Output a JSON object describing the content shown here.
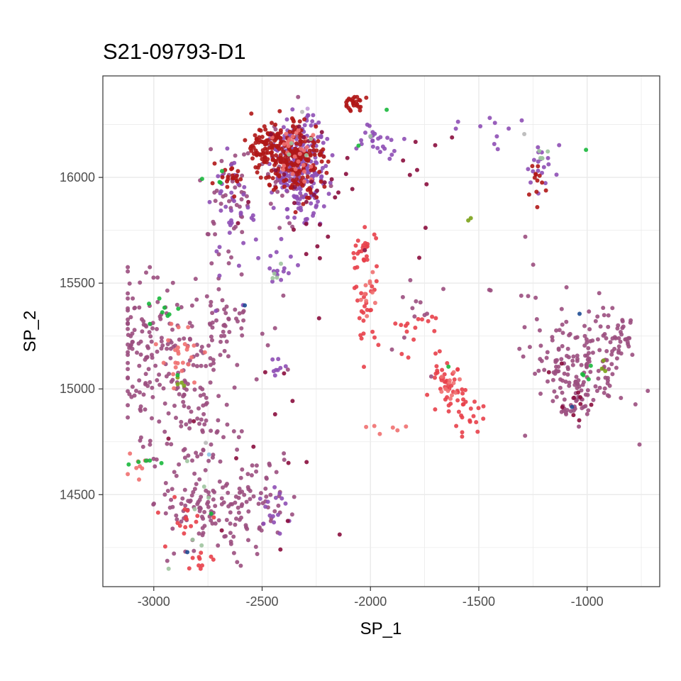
{
  "chart_data": {
    "type": "scatter",
    "title": "S21-09793-D1",
    "xlabel": "SP_1",
    "ylabel": "SP_2",
    "xlim": [
      -3235,
      -665
    ],
    "ylim": [
      14065,
      16480
    ],
    "x_ticks": [
      -3000,
      -2500,
      -2000,
      -1500,
      -1000
    ],
    "y_ticks": [
      14500,
      15000,
      15500,
      16000
    ],
    "x_tick_labels": [
      "-3000",
      "-2500",
      "-2000",
      "-1500",
      "-1000"
    ],
    "y_tick_labels": [
      "14500",
      "15000",
      "15500",
      "16000"
    ],
    "grid": true,
    "legend": "none",
    "colors": {
      "mauve": "#9b4f7f",
      "purple": "#8e4fb5",
      "red": "#e8404a",
      "darkred": "#b01717",
      "maroon": "#8a0d3d",
      "salmon": "#f07070",
      "green": "#19b83c",
      "olive": "#7ba21a",
      "sage": "#9fc49f",
      "navy": "#1e4d94",
      "grey": "#b8b8b8",
      "lightblue": "#8ec3e6",
      "paleviolet": "#c49bd9"
    },
    "clusters": [
      {
        "color": "mauve",
        "cx": -3050,
        "cy": 15200,
        "sx": 80,
        "sy": 170,
        "n": 110
      },
      {
        "color": "mauve",
        "cx": -2880,
        "cy": 14950,
        "sx": 90,
        "sy": 210,
        "n": 80
      },
      {
        "color": "mauve",
        "cx": -2720,
        "cy": 14400,
        "sx": 130,
        "sy": 120,
        "n": 120
      },
      {
        "color": "mauve",
        "cx": -2520,
        "cy": 14520,
        "sx": 90,
        "sy": 90,
        "n": 40
      },
      {
        "color": "mauve",
        "cx": -2700,
        "cy": 15350,
        "sx": 100,
        "sy": 150,
        "n": 60
      },
      {
        "color": "mauve",
        "cx": -2730,
        "cy": 14900,
        "sx": 60,
        "sy": 220,
        "n": 50
      },
      {
        "color": "mauve",
        "cx": -2640,
        "cy": 15900,
        "sx": 60,
        "sy": 120,
        "n": 40
      },
      {
        "color": "mauve",
        "cx": -2400,
        "cy": 16050,
        "sx": 80,
        "sy": 120,
        "n": 50
      },
      {
        "color": "mauve",
        "cx": -1040,
        "cy": 15100,
        "sx": 110,
        "sy": 120,
        "n": 150
      },
      {
        "color": "mauve",
        "cx": -880,
        "cy": 15250,
        "sx": 60,
        "sy": 100,
        "n": 40
      },
      {
        "color": "mauve",
        "cx": -1050,
        "cy": 14920,
        "sx": 40,
        "sy": 40,
        "n": 20
      },
      {
        "color": "mauve",
        "cx": -1780,
        "cy": 15350,
        "sx": 60,
        "sy": 160,
        "n": 12
      },
      {
        "color": "mauve",
        "cx": -1300,
        "cy": 15500,
        "sx": 80,
        "sy": 80,
        "n": 8
      },
      {
        "color": "purple",
        "cx": -2330,
        "cy": 16050,
        "sx": 60,
        "sy": 110,
        "n": 220
      },
      {
        "color": "purple",
        "cx": -1960,
        "cy": 16180,
        "sx": 60,
        "sy": 40,
        "n": 25
      },
      {
        "color": "purple",
        "cx": -2640,
        "cy": 15950,
        "sx": 40,
        "sy": 100,
        "n": 25
      },
      {
        "color": "purple",
        "cx": -2430,
        "cy": 15570,
        "sx": 40,
        "sy": 40,
        "n": 15
      },
      {
        "color": "purple",
        "cx": -2580,
        "cy": 15650,
        "sx": 100,
        "sy": 120,
        "n": 15
      },
      {
        "color": "purple",
        "cx": -2420,
        "cy": 15100,
        "sx": 20,
        "sy": 30,
        "n": 8
      },
      {
        "color": "purple",
        "cx": -2450,
        "cy": 14450,
        "sx": 50,
        "sy": 60,
        "n": 15
      },
      {
        "color": "purple",
        "cx": -1200,
        "cy": 16060,
        "sx": 40,
        "sy": 50,
        "n": 18
      },
      {
        "color": "purple",
        "cx": -1500,
        "cy": 16200,
        "sx": 80,
        "sy": 50,
        "n": 10
      },
      {
        "color": "purple",
        "cx": -2260,
        "cy": 15920,
        "sx": 40,
        "sy": 60,
        "n": 15
      },
      {
        "color": "darkred",
        "cx": -2360,
        "cy": 16100,
        "sx": 70,
        "sy": 90,
        "n": 220
      },
      {
        "color": "darkred",
        "cx": -2500,
        "cy": 16150,
        "sx": 40,
        "sy": 50,
        "n": 60
      },
      {
        "color": "darkred",
        "cx": -2080,
        "cy": 16350,
        "sx": 25,
        "sy": 20,
        "n": 25
      },
      {
        "color": "darkred",
        "cx": -1240,
        "cy": 16000,
        "sx": 25,
        "sy": 60,
        "n": 12
      },
      {
        "color": "darkred",
        "cx": -2660,
        "cy": 15980,
        "sx": 40,
        "sy": 30,
        "n": 20
      },
      {
        "color": "red",
        "cx": -1655,
        "cy": 15010,
        "sx": 45,
        "sy": 60,
        "n": 40
      },
      {
        "color": "red",
        "cx": -1560,
        "cy": 14870,
        "sx": 40,
        "sy": 40,
        "n": 20
      },
      {
        "color": "red",
        "cx": -2030,
        "cy": 15640,
        "sx": 35,
        "sy": 60,
        "n": 25
      },
      {
        "color": "red",
        "cx": -1800,
        "cy": 15280,
        "sx": 60,
        "sy": 70,
        "n": 15
      },
      {
        "color": "red",
        "cx": -2850,
        "cy": 14400,
        "sx": 60,
        "sy": 60,
        "n": 15
      },
      {
        "color": "red",
        "cx": -2780,
        "cy": 14180,
        "sx": 30,
        "sy": 20,
        "n": 10
      },
      {
        "color": "red",
        "cx": -2020,
        "cy": 15370,
        "sx": 30,
        "sy": 80,
        "n": 25
      },
      {
        "color": "salmon",
        "cx": -2870,
        "cy": 15150,
        "sx": 50,
        "sy": 80,
        "n": 25
      },
      {
        "color": "salmon",
        "cx": -3080,
        "cy": 14650,
        "sx": 30,
        "sy": 30,
        "n": 8
      },
      {
        "color": "salmon",
        "cx": -2340,
        "cy": 16120,
        "sx": 60,
        "sy": 80,
        "n": 30
      },
      {
        "color": "salmon",
        "cx": -1620,
        "cy": 15010,
        "sx": 30,
        "sy": 50,
        "n": 12
      },
      {
        "color": "salmon",
        "cx": -2010,
        "cy": 15450,
        "sx": 30,
        "sy": 60,
        "n": 10
      },
      {
        "color": "salmon",
        "cx": -1920,
        "cy": 14820,
        "sx": 50,
        "sy": 30,
        "n": 5
      },
      {
        "color": "maroon",
        "cx": -2280,
        "cy": 15980,
        "sx": 130,
        "sy": 180,
        "n": 30
      },
      {
        "color": "maroon",
        "cx": -1050,
        "cy": 14950,
        "sx": 60,
        "sy": 60,
        "n": 10
      },
      {
        "color": "maroon",
        "cx": -2500,
        "cy": 14800,
        "sx": 200,
        "sy": 300,
        "n": 14
      },
      {
        "color": "maroon",
        "cx": -1750,
        "cy": 16100,
        "sx": 60,
        "sy": 100,
        "n": 8
      },
      {
        "color": "green",
        "cx": -2940,
        "cy": 15350,
        "sx": 50,
        "sy": 50,
        "n": 8
      },
      {
        "color": "green",
        "cx": -3050,
        "cy": 14660,
        "sx": 50,
        "sy": 10,
        "n": 5
      },
      {
        "color": "green",
        "cx": -2700,
        "cy": 16000,
        "sx": 50,
        "sy": 40,
        "n": 4
      },
      {
        "color": "green",
        "cx": -1030,
        "cy": 15100,
        "sx": 30,
        "sy": 60,
        "n": 4
      },
      {
        "color": "sage",
        "cx": -2800,
        "cy": 14400,
        "sx": 80,
        "sy": 180,
        "n": 7
      },
      {
        "color": "sage",
        "cx": -2440,
        "cy": 15540,
        "sx": 20,
        "sy": 30,
        "n": 4
      },
      {
        "color": "sage",
        "cx": -1200,
        "cy": 16110,
        "sx": 20,
        "sy": 20,
        "n": 5
      },
      {
        "color": "sage",
        "cx": -2290,
        "cy": 16150,
        "sx": 40,
        "sy": 50,
        "n": 4
      },
      {
        "color": "olive",
        "cx": -2880,
        "cy": 15040,
        "sx": 30,
        "sy": 20,
        "n": 4
      },
      {
        "color": "olive",
        "cx": -1540,
        "cy": 15780,
        "sx": 10,
        "sy": 10,
        "n": 2
      },
      {
        "color": "olive",
        "cx": -900,
        "cy": 15140,
        "sx": 30,
        "sy": 40,
        "n": 3
      }
    ],
    "points": [
      {
        "x": -2580,
        "y": 15395,
        "color": "navy"
      },
      {
        "x": -1035,
        "y": 15355,
        "color": "navy"
      },
      {
        "x": -2845,
        "y": 14228,
        "color": "navy"
      },
      {
        "x": -1070,
        "y": 14915,
        "color": "navy"
      },
      {
        "x": -2315,
        "y": 16310,
        "color": "grey"
      },
      {
        "x": -1290,
        "y": 16205,
        "color": "grey"
      },
      {
        "x": -2760,
        "y": 14745,
        "color": "grey"
      },
      {
        "x": -2290,
        "y": 16325,
        "color": "paleviolet"
      },
      {
        "x": -2745,
        "y": 14690,
        "color": "lightblue"
      },
      {
        "x": -2000,
        "y": 16195,
        "color": "sage"
      },
      {
        "x": -1925,
        "y": 16320,
        "color": "green"
      },
      {
        "x": -2055,
        "y": 16150,
        "color": "green"
      },
      {
        "x": -2735,
        "y": 14410,
        "color": "green"
      },
      {
        "x": -2890,
        "y": 15065,
        "color": "green"
      },
      {
        "x": -1005,
        "y": 16130,
        "color": "green"
      },
      {
        "x": -1640,
        "y": 15105,
        "color": "green"
      },
      {
        "x": -2020,
        "y": 14820,
        "color": "salmon"
      },
      {
        "x": -1775,
        "y": 15620,
        "color": "maroon"
      },
      {
        "x": -2440,
        "y": 14880,
        "color": "maroon"
      }
    ]
  }
}
